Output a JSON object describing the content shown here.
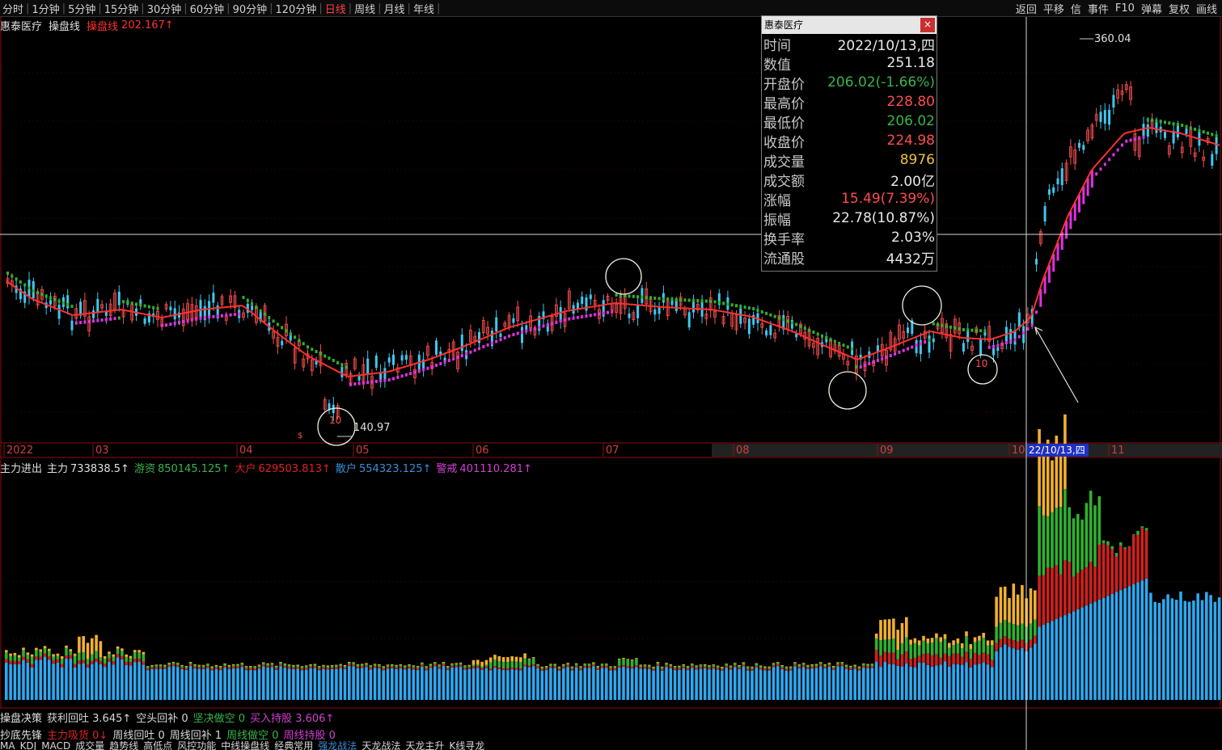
{
  "topbar": {
    "timeframes": [
      "分时",
      "1分钟",
      "5分钟",
      "15分钟",
      "30分钟",
      "60分钟",
      "90分钟",
      "120分钟",
      "日线",
      "周线",
      "月线",
      "年线"
    ],
    "selected": "日线",
    "right_buttons": [
      "返回",
      "平移",
      "信",
      "事件",
      "F10",
      "弹幕",
      "复权",
      "画线"
    ]
  },
  "title": {
    "stock_name": "惠泰医疗",
    "indicator_name": "操盘线",
    "indicator_label": "操盘线",
    "indicator_value": "202.167↑"
  },
  "popup": {
    "header": "惠泰医疗",
    "close": "×",
    "rows": [
      {
        "k": "时间",
        "v": "2022/10/13,四",
        "color": "#e8e8e8"
      },
      {
        "k": "数值",
        "v": "251.18",
        "color": "#e8e8e8"
      },
      {
        "k": "开盘价",
        "v": "206.02(-1.66%)",
        "color": "#39b54a"
      },
      {
        "k": "最高价",
        "v": "228.80",
        "color": "#ff4d4d"
      },
      {
        "k": "最低价",
        "v": "206.02",
        "color": "#39b54a"
      },
      {
        "k": "收盘价",
        "v": "224.98",
        "color": "#ff4d4d"
      },
      {
        "k": "成交量",
        "v": "8976",
        "color": "#f0c040"
      },
      {
        "k": "成交额",
        "v": "2.00亿",
        "color": "#e8e8e8"
      },
      {
        "k": "涨幅",
        "v": "15.49(7.39%)",
        "color": "#ff4d4d"
      },
      {
        "k": "振幅",
        "v": "22.78(10.87%)",
        "color": "#e8e8e8"
      },
      {
        "k": "换手率",
        "v": "2.03%",
        "color": "#e8e8e8"
      },
      {
        "k": "流通股",
        "v": "4432万",
        "color": "#e8e8e8"
      }
    ]
  },
  "price_labels": {
    "high": "360.04",
    "low": "140.97"
  },
  "circle_labels": {
    "t1": "10",
    "t2": "10"
  },
  "x_axis": {
    "labels": [
      "2022",
      "03",
      "04",
      "05",
      "06",
      "07",
      "08",
      "09",
      "10",
      "11"
    ],
    "cursor_date": "22/10/13,四"
  },
  "lower": {
    "title": "主力进出",
    "items": [
      {
        "label": "主力",
        "value": "733838.5↑",
        "color": "#e0e0e0"
      },
      {
        "label": "游资",
        "value": "850145.125↑",
        "color": "#39b54a"
      },
      {
        "label": "大户",
        "value": "629503.813↑",
        "color": "#e02020"
      },
      {
        "label": "散户",
        "value": "554323.125↑",
        "color": "#3a8fd8"
      },
      {
        "label": "警戒",
        "value": "401110.281↑",
        "color": "#d040d0"
      }
    ]
  },
  "bottom1": {
    "title": "操盘决策",
    "items": [
      {
        "t": "获利回吐 3.645↑",
        "c": "#d8d8d8"
      },
      {
        "t": "空头回补 0",
        "c": "#d8d8d8"
      },
      {
        "t": "坚决做空 0",
        "c": "#39b54a"
      },
      {
        "t": "买入持股 3.606↑",
        "c": "#d040d0"
      }
    ]
  },
  "bottom2": {
    "title": "抄底先锋",
    "items": [
      {
        "t": "主力吸货 0↓",
        "c": "#e02020"
      },
      {
        "t": "周线回吐 0",
        "c": "#d8d8d8"
      },
      {
        "t": "周线回补 1",
        "c": "#d8d8d8"
      },
      {
        "t": "周线做空 0",
        "c": "#39b54a"
      },
      {
        "t": "周线持股 0",
        "c": "#d040d0"
      }
    ]
  },
  "bottom3": {
    "tabs": [
      {
        "t": "MA",
        "c": "#d8d8d8"
      },
      {
        "t": "KDJ",
        "c": "#d8d8d8"
      },
      {
        "t": "MACD",
        "c": "#d8d8d8"
      },
      {
        "t": "成交量",
        "c": "#d8d8d8"
      },
      {
        "t": "趋势线",
        "c": "#d8d8d8"
      },
      {
        "t": "高低点",
        "c": "#d8d8d8"
      },
      {
        "t": "风控功能",
        "c": "#d8d8d8"
      },
      {
        "t": "中线操盘线",
        "c": "#d8d8d8"
      },
      {
        "t": "经典常用",
        "c": "#d8d8d8"
      },
      {
        "t": "强龙战法",
        "c": "#3a8fd8"
      },
      {
        "t": "天龙战法",
        "c": "#d8d8d8"
      },
      {
        "t": "天龙主升",
        "c": "#d8d8d8"
      },
      {
        "t": "K线寻龙",
        "c": "#d8d8d8"
      }
    ]
  },
  "colors": {
    "up": "#ff5050",
    "down": "#3ec8f0",
    "ma": "#ff3030",
    "green": "#30b030",
    "magenta": "#e030e0",
    "yellow": "#f0b030",
    "blue": "#2ea8f0",
    "red": "#d02020"
  }
}
